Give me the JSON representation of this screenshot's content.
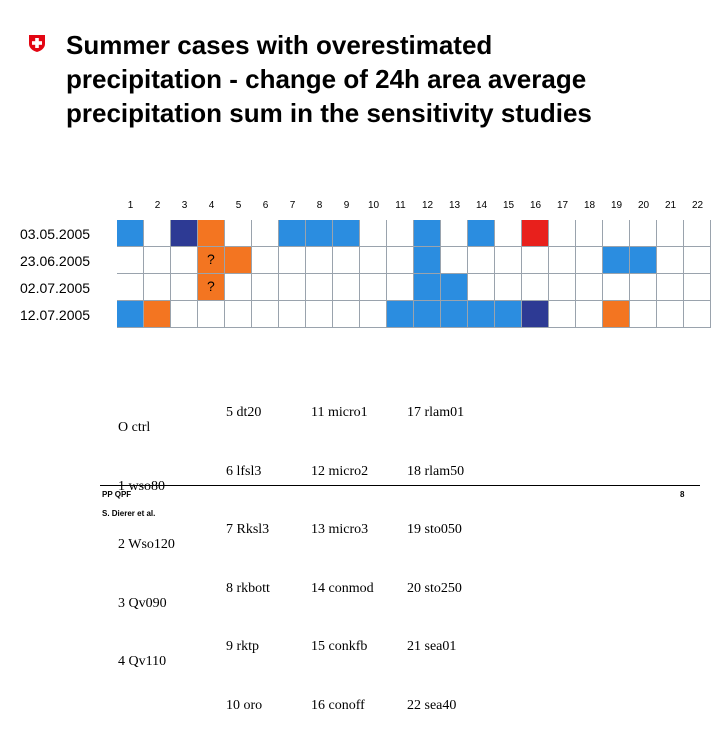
{
  "title_lines": [
    "Summer cases with overestimated",
    "precipitation - change of 24h area average",
    "precipitation sum in the sensitivity studies"
  ],
  "columns": [
    "1",
    "2",
    "3",
    "4",
    "5",
    "6",
    "7",
    "8",
    "9",
    "10",
    "11",
    "12",
    "13",
    "14",
    "15",
    "16",
    "17",
    "18",
    "19",
    "20",
    "21",
    "22"
  ],
  "rows": [
    {
      "label": "03.05.2005"
    },
    {
      "label": "23.06.2005"
    },
    {
      "label": "02.07.2005"
    },
    {
      "label": "12.07.2005"
    }
  ],
  "cell_colors": [
    [
      "#2b8de0",
      "white",
      "#2d3a94",
      "#f37521",
      "white",
      "white",
      "#2b8de0",
      "#2b8de0",
      "#2b8de0",
      "white",
      "white",
      "#2b8de0",
      "white",
      "#2b8de0",
      "white",
      "#e8201c",
      "white",
      "white",
      "white",
      "white",
      "white",
      "white"
    ],
    [
      "white",
      "white",
      "white",
      "#f37521",
      "#f37521",
      "white",
      "white",
      "white",
      "white",
      "white",
      "white",
      "#2b8de0",
      "white",
      "white",
      "white",
      "white",
      "white",
      "white",
      "#2b8de0",
      "#2b8de0",
      "white",
      "white"
    ],
    [
      "white",
      "white",
      "white",
      "#f37521",
      "white",
      "white",
      "white",
      "white",
      "white",
      "white",
      "white",
      "#2b8de0",
      "#2b8de0",
      "white",
      "white",
      "white",
      "white",
      "white",
      "white",
      "white",
      "white",
      "white"
    ],
    [
      "#2b8de0",
      "#f37521",
      "white",
      "white",
      "white",
      "white",
      "white",
      "white",
      "white",
      "white",
      "#2b8de0",
      "#2b8de0",
      "#2b8de0",
      "#2b8de0",
      "#2b8de0",
      "#2d3a94",
      "white",
      "white",
      "#f37521",
      "white",
      "white",
      "white"
    ]
  ],
  "question_marks": [
    {
      "row": 1,
      "col": 3,
      "text": "?"
    },
    {
      "row": 2,
      "col": 3,
      "text": "?"
    }
  ],
  "legend": {
    "col1": [
      "O ctrl",
      "1 wso80",
      "2 Wso120",
      "3 Qv090",
      "4 Qv110"
    ],
    "col2": [
      "5 dt20",
      "6 lfsl3",
      "7 Rksl3",
      "8 rkbott",
      "9 rktp",
      "10 oro"
    ],
    "col3": [
      "11 micro1",
      "12 micro2",
      "13 micro3",
      "14 conmod",
      "15 conkfb",
      "16 conoff"
    ],
    "col4": [
      "17 rlam01",
      "18 rlam50",
      "19 sto050",
      "20 sto250",
      "21 sea01",
      "22 sea40"
    ]
  },
  "footer": {
    "left_line1": "PP QPF",
    "left_line2": "S. Dierer et al.",
    "page": "8"
  }
}
